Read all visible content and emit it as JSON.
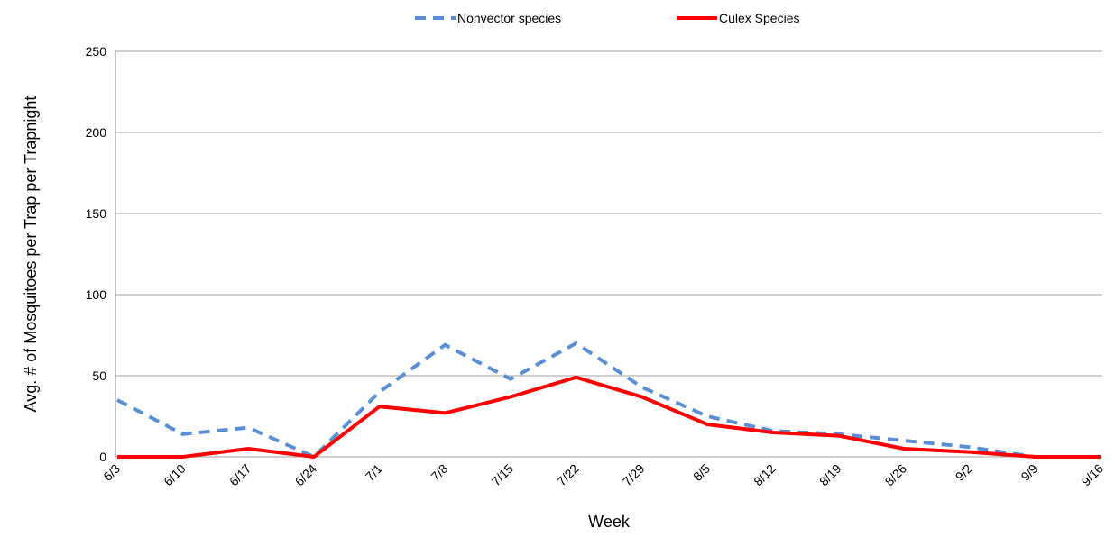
{
  "chart_data": {
    "type": "line",
    "x_label": "Week",
    "y_label": "Avg. # of Mosquitoes per Trap per Trapnight",
    "categories": [
      "6/3",
      "6/10",
      "6/17",
      "6/24",
      "7/1",
      "7/8",
      "7/15",
      "7/22",
      "7/29",
      "8/5",
      "8/12",
      "8/19",
      "8/26",
      "9/2",
      "9/9",
      "9/16"
    ],
    "series": [
      {
        "name": "Nonvector species",
        "color": "#5b8fd4",
        "dashed": true,
        "values": [
          35,
          14,
          18,
          0,
          40,
          69,
          48,
          70,
          43,
          25,
          16,
          14,
          10,
          6,
          0,
          0
        ]
      },
      {
        "name": "Culex Species",
        "color": "#ff0000",
        "dashed": false,
        "values": [
          0,
          0,
          5,
          0,
          31,
          27,
          37,
          49,
          37,
          20,
          15,
          13,
          5,
          3,
          0,
          0
        ]
      }
    ],
    "ylim": [
      0,
      250
    ],
    "yticks": [
      0,
      50,
      100,
      150,
      200,
      250
    ],
    "grid": true,
    "legend": "top"
  }
}
